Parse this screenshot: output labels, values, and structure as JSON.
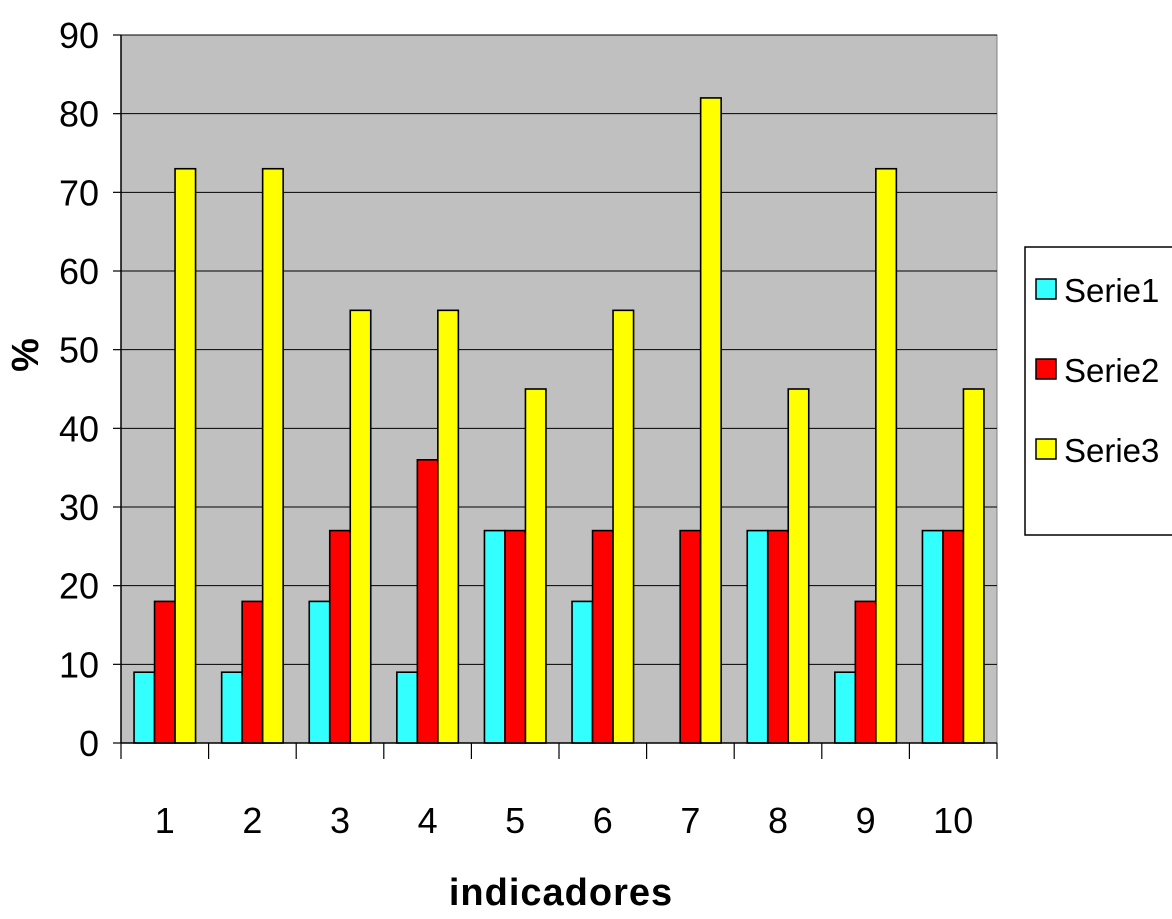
{
  "chart_data": {
    "type": "bar",
    "title": "",
    "xlabel": "indicadores",
    "ylabel": "%",
    "ylim": [
      0,
      90
    ],
    "yticks": [
      0,
      10,
      20,
      30,
      40,
      50,
      60,
      70,
      80,
      90
    ],
    "categories": [
      "1",
      "2",
      "3",
      "4",
      "5",
      "6",
      "7",
      "8",
      "9",
      "10"
    ],
    "series": [
      {
        "name": "Serie1",
        "color": "#33ffff",
        "values": [
          9,
          9,
          18,
          9,
          27,
          18,
          0,
          27,
          9,
          27
        ]
      },
      {
        "name": "Serie2",
        "color": "#ff0000",
        "values": [
          18,
          18,
          27,
          36,
          27,
          27,
          27,
          27,
          18,
          27
        ]
      },
      {
        "name": "Serie3",
        "color": "#ffff00",
        "values": [
          73,
          73,
          55,
          55,
          45,
          55,
          82,
          45,
          73,
          45
        ]
      }
    ],
    "grid": true,
    "plot_background": "#c0c0c0",
    "legend_position": "right"
  }
}
